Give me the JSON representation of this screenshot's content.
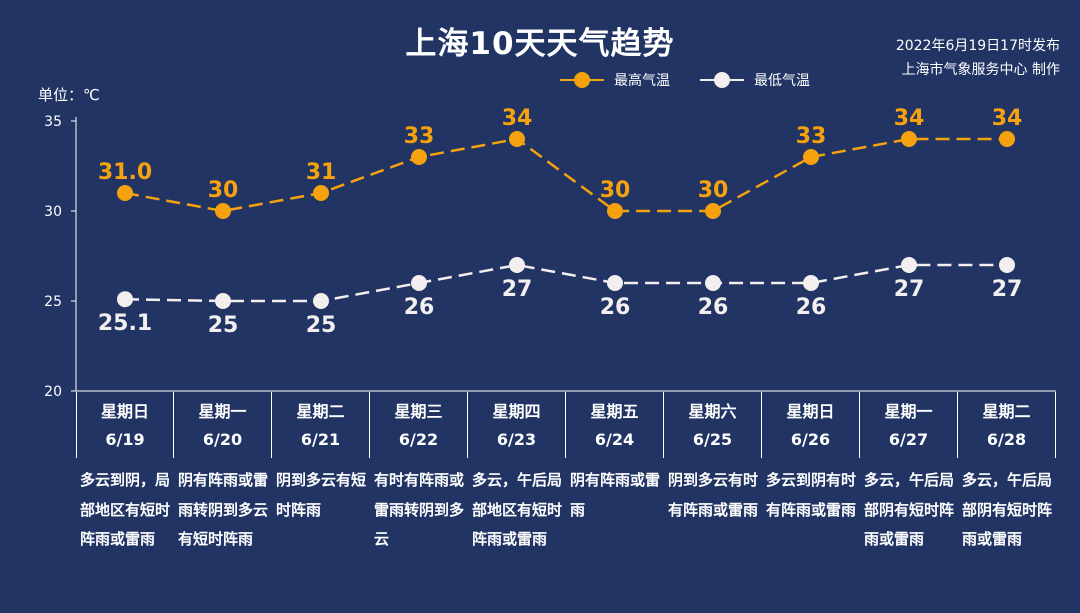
{
  "header": {
    "title": "上海10天天气趋势",
    "issued_line1": "2022年6月19日17时发布",
    "issued_line2": "上海市气象服务中心 制作",
    "unit_label": "单位：℃"
  },
  "colors": {
    "background": "#213464",
    "high": "#f5a20e",
    "low": "#f3efee",
    "axis": "#ffffff"
  },
  "chart_data": {
    "type": "line",
    "ylim": [
      20,
      35
    ],
    "yticks": [
      20,
      25,
      30,
      35
    ],
    "categories": [
      "6/19",
      "6/20",
      "6/21",
      "6/22",
      "6/23",
      "6/24",
      "6/25",
      "6/26",
      "6/27",
      "6/28"
    ],
    "series": [
      {
        "name": "最高气温",
        "values": [
          31.0,
          30,
          31,
          33,
          34,
          30,
          30,
          33,
          34,
          34
        ],
        "labels": [
          "31.0",
          "30",
          "31",
          "33",
          "34",
          "30",
          "30",
          "33",
          "34",
          "34"
        ]
      },
      {
        "name": "最低气温",
        "values": [
          25.1,
          25,
          25,
          26,
          27,
          26,
          26,
          26,
          27,
          27
        ],
        "labels": [
          "25.1",
          "25",
          "25",
          "26",
          "27",
          "26",
          "26",
          "26",
          "27",
          "27"
        ]
      }
    ]
  },
  "days": [
    {
      "weekday": "星期日",
      "date": "6/19",
      "weather": "多云到阴，局部地区有短时阵雨或雷雨"
    },
    {
      "weekday": "星期一",
      "date": "6/20",
      "weather": "阴有阵雨或雷雨转阴到多云有短时阵雨"
    },
    {
      "weekday": "星期二",
      "date": "6/21",
      "weather": "阴到多云有短时阵雨"
    },
    {
      "weekday": "星期三",
      "date": "6/22",
      "weather": "有时有阵雨或雷雨转阴到多云"
    },
    {
      "weekday": "星期四",
      "date": "6/23",
      "weather": "多云，午后局部地区有短时阵雨或雷雨"
    },
    {
      "weekday": "星期五",
      "date": "6/24",
      "weather": "阴有阵雨或雷雨"
    },
    {
      "weekday": "星期六",
      "date": "6/25",
      "weather": "阴到多云有时有阵雨或雷雨"
    },
    {
      "weekday": "星期日",
      "date": "6/26",
      "weather": "多云到阴有时有阵雨或雷雨"
    },
    {
      "weekday": "星期一",
      "date": "6/27",
      "weather": "多云，午后局部阴有短时阵雨或雷雨"
    },
    {
      "weekday": "星期二",
      "date": "6/28",
      "weather": "多云，午后局部阴有短时阵雨或雷雨"
    }
  ]
}
